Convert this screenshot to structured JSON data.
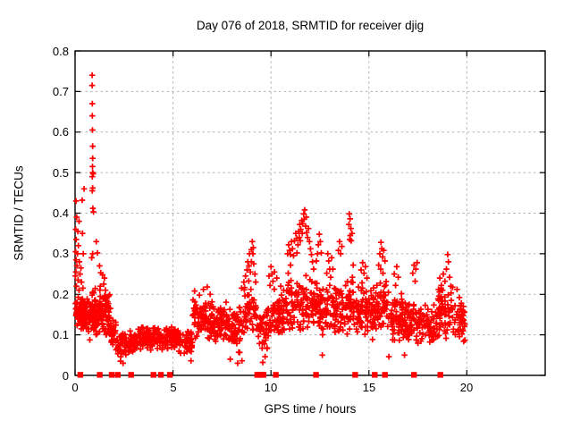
{
  "chart": {
    "title": "Day 076 of 2018, SRMTID for receiver djig",
    "xlabel": "GPS time / hours",
    "ylabel": "SRMTID / TECUs"
  },
  "chart_data": {
    "type": "scatter",
    "title": "Day 076 of 2018, SRMTID for receiver djig",
    "xlabel": "GPS time / hours",
    "ylabel": "SRMTID / TECUs",
    "xlim": [
      0,
      24
    ],
    "ylim": [
      0,
      0.8
    ],
    "xticks": [
      0,
      5,
      10,
      15,
      20
    ],
    "yticks": [
      0,
      0.1,
      0.2,
      0.3,
      0.4,
      0.5,
      0.6,
      0.7,
      0.8
    ],
    "grid": "dashed",
    "grid_color": "#b3b3b3",
    "frame_color": "#000000",
    "marker": "plus",
    "marker_color": "#ff0000",
    "series_name": "SRMTID",
    "legend": "none",
    "seed": 20180761,
    "feature_points": [
      [
        0.05,
        0.43
      ],
      [
        0.08,
        0.39
      ],
      [
        0.2,
        0.38
      ],
      [
        0.03,
        0.36
      ],
      [
        0.14,
        0.355
      ],
      [
        0.38,
        0.35
      ],
      [
        0.06,
        0.335
      ],
      [
        0.17,
        0.32
      ],
      [
        0.03,
        0.305
      ],
      [
        0.12,
        0.3
      ],
      [
        0.42,
        0.3
      ],
      [
        0.05,
        0.285
      ],
      [
        0.22,
        0.28
      ],
      [
        0.09,
        0.27
      ],
      [
        0.3,
        0.265
      ],
      [
        0.04,
        0.255
      ],
      [
        0.25,
        0.25
      ],
      [
        0.02,
        0.245
      ],
      [
        0.15,
        0.235
      ],
      [
        0.33,
        0.23
      ],
      [
        0.07,
        0.22
      ],
      [
        0.2,
        0.21
      ],
      [
        0.4,
        0.215
      ],
      [
        0.87,
        0.74
      ],
      [
        0.87,
        0.715
      ],
      [
        0.88,
        0.67
      ],
      [
        0.88,
        0.64
      ],
      [
        0.89,
        0.605
      ],
      [
        0.9,
        0.565
      ],
      [
        0.9,
        0.535
      ],
      [
        0.89,
        0.515
      ],
      [
        0.9,
        0.5
      ],
      [
        0.92,
        0.497
      ],
      [
        0.88,
        0.49
      ],
      [
        0.9,
        0.462
      ],
      [
        0.46,
        0.46
      ],
      [
        0.88,
        0.455
      ],
      [
        0.36,
        0.432
      ],
      [
        0.91,
        0.412
      ],
      [
        0.94,
        0.403
      ],
      [
        0.85,
        0.29
      ],
      [
        0.9,
        0.3
      ],
      [
        1.08,
        0.33
      ],
      [
        1.14,
        0.302
      ],
      [
        1.25,
        0.27
      ],
      [
        1.31,
        0.253
      ],
      [
        1.4,
        0.248
      ],
      [
        1.46,
        0.225
      ],
      [
        1.5,
        0.24
      ],
      [
        1.55,
        0.21
      ],
      [
        1.62,
        0.19
      ],
      [
        1.7,
        0.177
      ],
      [
        1.29,
        0.22
      ],
      [
        1.8,
        0.165
      ],
      [
        6.1,
        0.208
      ],
      [
        6.35,
        0.198
      ],
      [
        6.55,
        0.212
      ],
      [
        6.75,
        0.218
      ],
      [
        6.9,
        0.2
      ],
      [
        8.5,
        0.215
      ],
      [
        8.62,
        0.23
      ],
      [
        8.7,
        0.245
      ],
      [
        8.78,
        0.26
      ],
      [
        8.82,
        0.28
      ],
      [
        8.9,
        0.3
      ],
      [
        8.88,
        0.27
      ],
      [
        8.95,
        0.255
      ],
      [
        9.0,
        0.31
      ],
      [
        9.05,
        0.33
      ],
      [
        9.08,
        0.3
      ],
      [
        9.12,
        0.275
      ],
      [
        9.18,
        0.25
      ],
      [
        9.22,
        0.23
      ],
      [
        9.0,
        0.28
      ],
      [
        9.1,
        0.315
      ],
      [
        9.9,
        0.245
      ],
      [
        9.95,
        0.222
      ],
      [
        10.0,
        0.268
      ],
      [
        10.05,
        0.25
      ],
      [
        10.1,
        0.232
      ],
      [
        10.18,
        0.255
      ],
      [
        10.3,
        0.24
      ],
      [
        10.5,
        0.22
      ],
      [
        10.65,
        0.21
      ],
      [
        10.85,
        0.3
      ],
      [
        10.9,
        0.322
      ],
      [
        10.95,
        0.308
      ],
      [
        11.0,
        0.298
      ],
      [
        11.05,
        0.33
      ],
      [
        11.1,
        0.312
      ],
      [
        11.15,
        0.295
      ],
      [
        11.0,
        0.272
      ],
      [
        10.88,
        0.252
      ],
      [
        11.2,
        0.332
      ],
      [
        11.27,
        0.35
      ],
      [
        11.32,
        0.338
      ],
      [
        11.38,
        0.322
      ],
      [
        11.42,
        0.355
      ],
      [
        11.47,
        0.372
      ],
      [
        11.52,
        0.36
      ],
      [
        11.57,
        0.382
      ],
      [
        11.62,
        0.374
      ],
      [
        11.67,
        0.398
      ],
      [
        11.72,
        0.408
      ],
      [
        11.7,
        0.385
      ],
      [
        11.77,
        0.368
      ],
      [
        11.82,
        0.352
      ],
      [
        11.87,
        0.34
      ],
      [
        11.92,
        0.362
      ],
      [
        11.97,
        0.33
      ],
      [
        12.02,
        0.312
      ],
      [
        12.07,
        0.298
      ],
      [
        11.5,
        0.332
      ],
      [
        11.6,
        0.35
      ],
      [
        11.8,
        0.39
      ],
      [
        12.12,
        0.28
      ],
      [
        12.18,
        0.262
      ],
      [
        11.33,
        0.302
      ],
      [
        11.45,
        0.34
      ],
      [
        12.32,
        0.282
      ],
      [
        12.38,
        0.3
      ],
      [
        12.42,
        0.322
      ],
      [
        12.47,
        0.348
      ],
      [
        12.52,
        0.33
      ],
      [
        12.57,
        0.302
      ],
      [
        12.85,
        0.252
      ],
      [
        12.9,
        0.3
      ],
      [
        12.95,
        0.282
      ],
      [
        13.0,
        0.262
      ],
      [
        13.05,
        0.242
      ],
      [
        13.1,
        0.29
      ],
      [
        13.0,
        0.222
      ],
      [
        13.16,
        0.262
      ],
      [
        13.44,
        0.308
      ],
      [
        13.5,
        0.33
      ],
      [
        13.56,
        0.3
      ],
      [
        13.62,
        0.318
      ],
      [
        13.98,
        0.372
      ],
      [
        14.0,
        0.398
      ],
      [
        14.04,
        0.386
      ],
      [
        14.08,
        0.362
      ],
      [
        14.05,
        0.345
      ],
      [
        14.1,
        0.332
      ],
      [
        14.14,
        0.35
      ],
      [
        14.02,
        0.335
      ],
      [
        14.2,
        0.272
      ],
      [
        14.16,
        0.242
      ],
      [
        14.1,
        0.23
      ],
      [
        14.6,
        0.26
      ],
      [
        14.68,
        0.278
      ],
      [
        14.75,
        0.252
      ],
      [
        14.82,
        0.268
      ],
      [
        14.9,
        0.24
      ],
      [
        14.65,
        0.228
      ],
      [
        15.5,
        0.272
      ],
      [
        15.56,
        0.3
      ],
      [
        15.62,
        0.328
      ],
      [
        15.66,
        0.312
      ],
      [
        15.7,
        0.292
      ],
      [
        15.76,
        0.308
      ],
      [
        15.82,
        0.282
      ],
      [
        15.6,
        0.262
      ],
      [
        15.72,
        0.252
      ],
      [
        16.3,
        0.25
      ],
      [
        16.42,
        0.268
      ],
      [
        16.5,
        0.242
      ],
      [
        16.36,
        0.222
      ],
      [
        17.24,
        0.252
      ],
      [
        17.3,
        0.272
      ],
      [
        17.4,
        0.262
      ],
      [
        17.36,
        0.232
      ],
      [
        17.46,
        0.278
      ],
      [
        18.55,
        0.212
      ],
      [
        18.62,
        0.24
      ],
      [
        18.7,
        0.222
      ],
      [
        18.8,
        0.25
      ],
      [
        18.88,
        0.232
      ],
      [
        18.96,
        0.262
      ],
      [
        19.02,
        0.298
      ],
      [
        19.06,
        0.28
      ],
      [
        19.12,
        0.242
      ],
      [
        19.18,
        0.22
      ],
      [
        19.5,
        0.212
      ],
      [
        19.62,
        0.192
      ],
      [
        19.72,
        0.178
      ],
      [
        19.82,
        0.17
      ],
      [
        19.88,
        0.156
      ],
      [
        2.32,
        0.035
      ],
      [
        2.45,
        0.03
      ],
      [
        5.92,
        0.036
      ],
      [
        7.92,
        0.04
      ],
      [
        8.3,
        0.03
      ],
      [
        8.52,
        0.036
      ],
      [
        9.58,
        0.032
      ],
      [
        9.7,
        0.046
      ],
      [
        12.62,
        0.05
      ],
      [
        16.02,
        0.046
      ],
      [
        16.82,
        0.05
      ]
    ],
    "noise_bands": [
      [
        0.02,
        0.45,
        0.1,
        0.22,
        40
      ],
      [
        0.05,
        0.5,
        0.13,
        0.185,
        25
      ],
      [
        0.3,
        0.85,
        0.08,
        0.2,
        60
      ],
      [
        0.85,
        1.3,
        0.085,
        0.22,
        70
      ],
      [
        1.3,
        1.8,
        0.09,
        0.21,
        60
      ],
      [
        1.8,
        2.1,
        0.06,
        0.15,
        28
      ],
      [
        2.1,
        2.65,
        0.035,
        0.11,
        40
      ],
      [
        2.65,
        3.2,
        0.05,
        0.115,
        45
      ],
      [
        3.2,
        4.25,
        0.06,
        0.125,
        85
      ],
      [
        4.25,
        5.3,
        0.06,
        0.125,
        85
      ],
      [
        5.3,
        6.0,
        0.05,
        0.115,
        55
      ],
      [
        6.0,
        6.9,
        0.08,
        0.19,
        75
      ],
      [
        6.9,
        7.8,
        0.075,
        0.185,
        78
      ],
      [
        7.8,
        8.6,
        0.05,
        0.175,
        65
      ],
      [
        8.6,
        9.3,
        0.1,
        0.235,
        50
      ],
      [
        9.3,
        10.05,
        0.055,
        0.18,
        48
      ],
      [
        10.05,
        10.8,
        0.09,
        0.215,
        65
      ],
      [
        10.8,
        11.6,
        0.1,
        0.245,
        60
      ],
      [
        11.6,
        12.4,
        0.1,
        0.25,
        62
      ],
      [
        12.4,
        13.3,
        0.09,
        0.235,
        72
      ],
      [
        13.3,
        14.2,
        0.1,
        0.24,
        72
      ],
      [
        14.2,
        15.2,
        0.085,
        0.225,
        80
      ],
      [
        15.2,
        16.0,
        0.09,
        0.24,
        62
      ],
      [
        16.0,
        16.9,
        0.08,
        0.205,
        72
      ],
      [
        16.9,
        17.8,
        0.075,
        0.19,
        66
      ],
      [
        17.8,
        18.5,
        0.07,
        0.18,
        56
      ],
      [
        18.5,
        19.3,
        0.09,
        0.23,
        60
      ],
      [
        19.3,
        19.92,
        0.08,
        0.185,
        40
      ]
    ],
    "zero_marker_x": [
      0.27,
      1.26,
      1.87,
      2.18,
      2.86,
      4.0,
      4.38,
      4.84,
      9.3,
      9.4,
      9.5,
      9.62,
      10.25,
      12.3,
      14.3,
      15.3,
      15.82,
      17.3,
      18.65
    ]
  }
}
